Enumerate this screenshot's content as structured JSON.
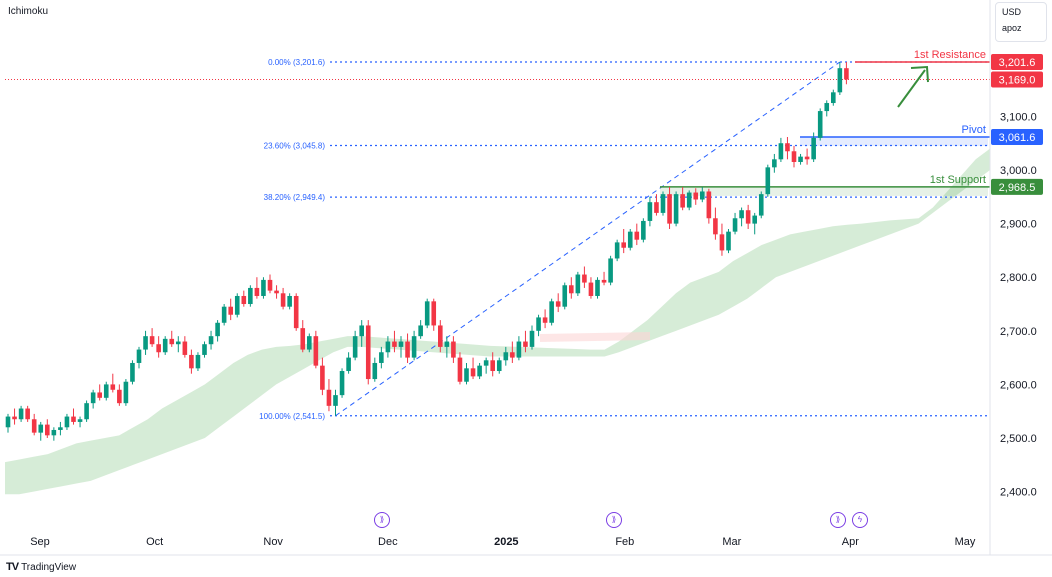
{
  "indicator_label": "Ichimoku",
  "price_scale": {
    "currency": "USD",
    "unit": "apoz"
  },
  "branding": {
    "logo": "TV",
    "name": "TradingView"
  },
  "colors": {
    "up": "#089981",
    "down": "#f23645",
    "cloud": "#c8e6c9",
    "cloud_red": "#fbd5d5",
    "resistance": "#f23645",
    "pivot": "#2962ff",
    "support": "#388e3c",
    "fib": "#2962ff"
  },
  "events": [
    {
      "icon": "earnings-forward-icon",
      "x": "2024-12-01"
    },
    {
      "icon": "earnings-forward-icon",
      "x": "2025-02-01"
    },
    {
      "icon": "earnings-forward-icon",
      "x": "2025-03-26"
    },
    {
      "icon": "dividend-bolt-icon",
      "x": "2025-03-30"
    }
  ],
  "chart_data": {
    "type": "candlestick",
    "title": "",
    "xlabel": "",
    "ylabel": "",
    "ylim": [
      2375,
      3265
    ],
    "y_ticks": [
      "2,400.0",
      "2,500.0",
      "2,600.0",
      "2,700.0",
      "2,800.0",
      "2,900.0",
      "3,000.0",
      "3,100.0"
    ],
    "y_tick_values": [
      2400,
      2500,
      2600,
      2700,
      2800,
      2900,
      3000,
      3100
    ],
    "x_ticks": [
      {
        "label": "Sep",
        "x": "2024-09-01",
        "bold": false
      },
      {
        "label": "Oct",
        "x": "2024-10-01",
        "bold": false
      },
      {
        "label": "Nov",
        "x": "2024-11-01",
        "bold": false
      },
      {
        "label": "Dec",
        "x": "2024-12-01",
        "bold": false
      },
      {
        "label": "2025",
        "x": "2025-01-01",
        "bold": true
      },
      {
        "label": "Feb",
        "x": "2025-02-01",
        "bold": false
      },
      {
        "label": "Mar",
        "x": "2025-03-01",
        "bold": false
      },
      {
        "label": "Apr",
        "x": "2025-04-01",
        "bold": false
      },
      {
        "label": "May",
        "x": "2025-05-01",
        "bold": false
      }
    ],
    "current_price": {
      "label": "3,169.0",
      "value": 3169.0
    },
    "levels": [
      {
        "name": "1st Resistance",
        "label": "3,201.6",
        "value": 3201.6,
        "color": "#f23645"
      },
      {
        "name": "Pivot",
        "label": "3,061.6",
        "value": 3061.6,
        "color": "#2962ff"
      },
      {
        "name": "1st Support",
        "label": "2,968.5",
        "value": 2968.5,
        "color": "#388e3c"
      }
    ],
    "fib_levels": [
      {
        "label": "0.00% (3,201.6)",
        "value": 3201.6
      },
      {
        "label": "23.60% (3,045.8)",
        "value": 3045.8
      },
      {
        "label": "38.20% (2,949.4)",
        "value": 2949.4
      },
      {
        "label": "100.00% (2,541.5)",
        "value": 2541.5
      }
    ],
    "series": [
      {
        "name": "",
        "values": [
          [
            2520,
            2545,
            2510,
            2540
          ],
          [
            2540,
            2555,
            2525,
            2535
          ],
          [
            2535,
            2560,
            2530,
            2555
          ],
          [
            2555,
            2560,
            2530,
            2535
          ],
          [
            2535,
            2545,
            2505,
            2510
          ],
          [
            2510,
            2530,
            2495,
            2525
          ],
          [
            2525,
            2535,
            2500,
            2505
          ],
          [
            2505,
            2520,
            2495,
            2515
          ],
          [
            2515,
            2530,
            2505,
            2520
          ],
          [
            2520,
            2545,
            2515,
            2540
          ],
          [
            2540,
            2555,
            2525,
            2530
          ],
          [
            2530,
            2540,
            2520,
            2535
          ],
          [
            2535,
            2570,
            2530,
            2565
          ],
          [
            2565,
            2590,
            2555,
            2585
          ],
          [
            2585,
            2600,
            2570,
            2575
          ],
          [
            2575,
            2605,
            2570,
            2600
          ],
          [
            2600,
            2620,
            2585,
            2590
          ],
          [
            2590,
            2600,
            2560,
            2565
          ],
          [
            2565,
            2610,
            2560,
            2605
          ],
          [
            2605,
            2645,
            2600,
            2640
          ],
          [
            2640,
            2670,
            2630,
            2665
          ],
          [
            2665,
            2700,
            2655,
            2690
          ],
          [
            2690,
            2705,
            2670,
            2675
          ],
          [
            2675,
            2690,
            2650,
            2660
          ],
          [
            2660,
            2690,
            2655,
            2685
          ],
          [
            2685,
            2700,
            2670,
            2675
          ],
          [
            2675,
            2690,
            2660,
            2680
          ],
          [
            2680,
            2690,
            2650,
            2655
          ],
          [
            2655,
            2665,
            2620,
            2630
          ],
          [
            2630,
            2660,
            2625,
            2655
          ],
          [
            2655,
            2680,
            2650,
            2675
          ],
          [
            2675,
            2700,
            2665,
            2690
          ],
          [
            2690,
            2720,
            2680,
            2715
          ],
          [
            2715,
            2750,
            2710,
            2745
          ],
          [
            2745,
            2760,
            2720,
            2730
          ],
          [
            2730,
            2770,
            2725,
            2765
          ],
          [
            2765,
            2775,
            2745,
            2750
          ],
          [
            2750,
            2785,
            2745,
            2780
          ],
          [
            2780,
            2800,
            2760,
            2765
          ],
          [
            2765,
            2800,
            2760,
            2795
          ],
          [
            2795,
            2805,
            2770,
            2775
          ],
          [
            2775,
            2785,
            2760,
            2770
          ],
          [
            2770,
            2780,
            2740,
            2745
          ],
          [
            2745,
            2770,
            2740,
            2765
          ],
          [
            2765,
            2770,
            2700,
            2705
          ],
          [
            2705,
            2720,
            2660,
            2665
          ],
          [
            2665,
            2695,
            2660,
            2690
          ],
          [
            2690,
            2700,
            2630,
            2635
          ],
          [
            2635,
            2650,
            2580,
            2590
          ],
          [
            2590,
            2610,
            2550,
            2560
          ],
          [
            2560,
            2590,
            2541.5,
            2580
          ],
          [
            2580,
            2630,
            2575,
            2625
          ],
          [
            2625,
            2660,
            2620,
            2650
          ],
          [
            2650,
            2700,
            2645,
            2690
          ],
          [
            2690,
            2720,
            2670,
            2710
          ],
          [
            2710,
            2720,
            2600,
            2610
          ],
          [
            2610,
            2650,
            2605,
            2640
          ],
          [
            2640,
            2670,
            2630,
            2660
          ],
          [
            2660,
            2690,
            2650,
            2680
          ],
          [
            2680,
            2700,
            2660,
            2670
          ],
          [
            2670,
            2690,
            2650,
            2680
          ],
          [
            2680,
            2695,
            2640,
            2650
          ],
          [
            2650,
            2700,
            2645,
            2690
          ],
          [
            2690,
            2720,
            2685,
            2710
          ],
          [
            2710,
            2760,
            2705,
            2755
          ],
          [
            2755,
            2760,
            2700,
            2710
          ],
          [
            2710,
            2720,
            2660,
            2670
          ],
          [
            2670,
            2690,
            2650,
            2680
          ],
          [
            2680,
            2690,
            2640,
            2650
          ],
          [
            2650,
            2660,
            2600,
            2605
          ],
          [
            2605,
            2640,
            2600,
            2630
          ],
          [
            2630,
            2650,
            2610,
            2615
          ],
          [
            2615,
            2640,
            2610,
            2635
          ],
          [
            2635,
            2650,
            2620,
            2645
          ],
          [
            2645,
            2660,
            2615,
            2625
          ],
          [
            2625,
            2650,
            2620,
            2645
          ],
          [
            2645,
            2670,
            2635,
            2660
          ],
          [
            2660,
            2680,
            2640,
            2650
          ],
          [
            2650,
            2690,
            2645,
            2680
          ],
          [
            2680,
            2700,
            2660,
            2670
          ],
          [
            2670,
            2710,
            2665,
            2700
          ],
          [
            2700,
            2730,
            2690,
            2725
          ],
          [
            2725,
            2740,
            2705,
            2715
          ],
          [
            2715,
            2760,
            2710,
            2755
          ],
          [
            2755,
            2770,
            2735,
            2745
          ],
          [
            2745,
            2790,
            2740,
            2785
          ],
          [
            2785,
            2800,
            2760,
            2770
          ],
          [
            2770,
            2810,
            2765,
            2805
          ],
          [
            2805,
            2820,
            2780,
            2790
          ],
          [
            2790,
            2800,
            2760,
            2765
          ],
          [
            2765,
            2800,
            2760,
            2795
          ],
          [
            2795,
            2810,
            2785,
            2790
          ],
          [
            2790,
            2840,
            2785,
            2835
          ],
          [
            2835,
            2870,
            2830,
            2865
          ],
          [
            2865,
            2890,
            2845,
            2855
          ],
          [
            2855,
            2890,
            2850,
            2885
          ],
          [
            2885,
            2900,
            2860,
            2870
          ],
          [
            2870,
            2910,
            2865,
            2905
          ],
          [
            2905,
            2950,
            2895,
            2940
          ],
          [
            2940,
            2955,
            2915,
            2920
          ],
          [
            2920,
            2960,
            2915,
            2955
          ],
          [
            2955,
            2968.5,
            2890,
            2900
          ],
          [
            2900,
            2960,
            2895,
            2955
          ],
          [
            2955,
            2968,
            2925,
            2930
          ],
          [
            2930,
            2962,
            2925,
            2958
          ],
          [
            2958,
            2966,
            2935,
            2945
          ],
          [
            2945,
            2968,
            2940,
            2960
          ],
          [
            2960,
            2965,
            2900,
            2910
          ],
          [
            2910,
            2930,
            2870,
            2880
          ],
          [
            2880,
            2900,
            2840,
            2850
          ],
          [
            2850,
            2890,
            2845,
            2885
          ],
          [
            2885,
            2920,
            2880,
            2910
          ],
          [
            2910,
            2930,
            2895,
            2925
          ],
          [
            2925,
            2935,
            2890,
            2900
          ],
          [
            2900,
            2920,
            2880,
            2915
          ],
          [
            2915,
            2960,
            2910,
            2955
          ],
          [
            2955,
            3010,
            2950,
            3005
          ],
          [
            3005,
            3030,
            2995,
            3020
          ],
          [
            3020,
            3060,
            3015,
            3050
          ],
          [
            3050,
            3061.6,
            3020,
            3035
          ],
          [
            3035,
            3045,
            3005,
            3015
          ],
          [
            3015,
            3030,
            3010,
            3025
          ],
          [
            3025,
            3040,
            3010,
            3020
          ],
          [
            3020,
            3070,
            3015,
            3060
          ],
          [
            3060,
            3115,
            3055,
            3110
          ],
          [
            3110,
            3130,
            3100,
            3125
          ],
          [
            3125,
            3150,
            3120,
            3145
          ],
          [
            3145,
            3201.6,
            3140,
            3190
          ],
          [
            3190,
            3201.6,
            3160,
            3169
          ]
        ]
      }
    ],
    "cloud": {
      "upper": [
        2455,
        2460,
        2465,
        2470,
        2480,
        2490,
        2495,
        2500,
        2505,
        2520,
        2535,
        2555,
        2570,
        2585,
        2600,
        2620,
        2640,
        2655,
        2665,
        2670,
        2672,
        2675,
        2680,
        2685,
        2690,
        2690,
        2688,
        2686,
        2684,
        2682,
        2680,
        2678,
        2676,
        2674,
        2672,
        2671,
        2670,
        2669,
        2668,
        2667,
        2666,
        2665,
        2665,
        2680,
        2700,
        2720,
        2745,
        2770,
        2790,
        2800,
        2810,
        2830,
        2845,
        2860,
        2870,
        2880,
        2885,
        2890,
        2895,
        2898,
        2900,
        2903,
        2906,
        2908,
        2910,
        2930,
        2960,
        2990,
        3020,
        3040
      ],
      "lower": [
        2395,
        2395,
        2400,
        2405,
        2410,
        2415,
        2420,
        2430,
        2440,
        2450,
        2460,
        2470,
        2480,
        2490,
        2500,
        2520,
        2540,
        2560,
        2580,
        2600,
        2615,
        2630,
        2645,
        2660,
        2670,
        2670,
        2668,
        2666,
        2664,
        2662,
        2660,
        2658,
        2656,
        2654,
        2652,
        2652,
        2652,
        2652,
        2652,
        2652,
        2652,
        2652,
        2652,
        2660,
        2670,
        2680,
        2690,
        2700,
        2710,
        2720,
        2730,
        2745,
        2760,
        2780,
        2800,
        2810,
        2820,
        2830,
        2840,
        2850,
        2860,
        2870,
        2880,
        2890,
        2900,
        2920,
        2940,
        2960,
        2980,
        3000
      ]
    }
  }
}
